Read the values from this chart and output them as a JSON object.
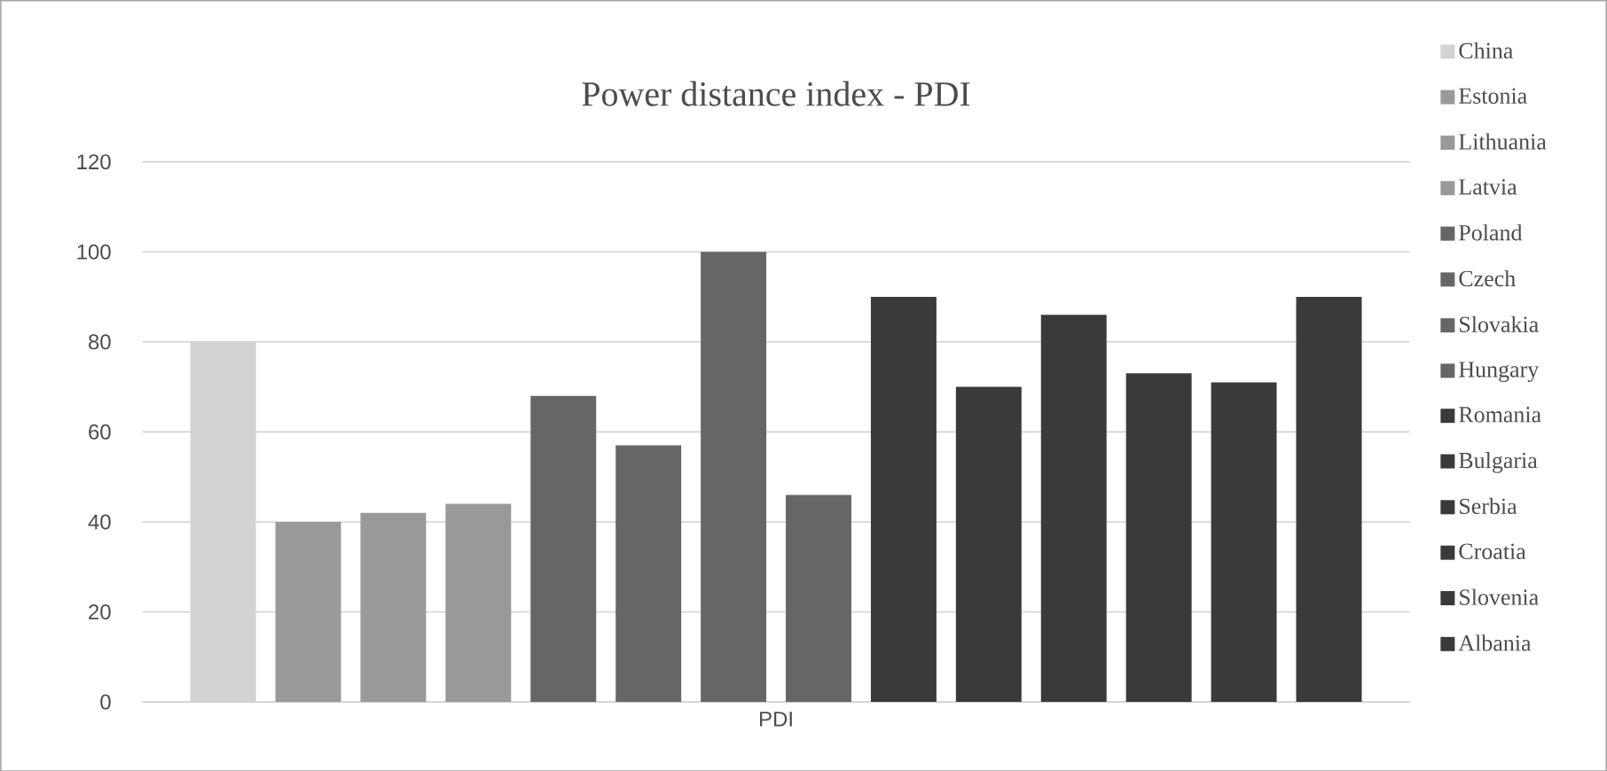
{
  "chart_data": {
    "type": "bar",
    "title": "Power distance index - PDI",
    "categories": [
      "PDI"
    ],
    "ylim": [
      0,
      120
    ],
    "yticks": [
      0,
      20,
      40,
      60,
      80,
      100,
      120
    ],
    "grid": "y",
    "legend": "right",
    "series": [
      {
        "name": "China",
        "color": "#d3d3d3",
        "values": [
          80
        ]
      },
      {
        "name": "Estonia",
        "color": "#999999",
        "values": [
          40
        ]
      },
      {
        "name": "Lithuania",
        "color": "#999999",
        "values": [
          42
        ]
      },
      {
        "name": "Latvia",
        "color": "#999999",
        "values": [
          44
        ]
      },
      {
        "name": "Poland",
        "color": "#666666",
        "values": [
          68
        ]
      },
      {
        "name": "Czech",
        "color": "#666666",
        "values": [
          57
        ]
      },
      {
        "name": "Slovakia",
        "color": "#666666",
        "values": [
          100
        ]
      },
      {
        "name": "Hungary",
        "color": "#666666",
        "values": [
          46
        ]
      },
      {
        "name": "Romania",
        "color": "#3a3a3a",
        "values": [
          90
        ]
      },
      {
        "name": "Bulgaria",
        "color": "#3a3a3a",
        "values": [
          70
        ]
      },
      {
        "name": "Serbia",
        "color": "#3a3a3a",
        "values": [
          86
        ]
      },
      {
        "name": "Croatia",
        "color": "#3a3a3a",
        "values": [
          73
        ]
      },
      {
        "name": "Slovenia",
        "color": "#3a3a3a",
        "values": [
          71
        ]
      },
      {
        "name": "Albania",
        "color": "#3a3a3a",
        "values": [
          90
        ]
      }
    ]
  }
}
